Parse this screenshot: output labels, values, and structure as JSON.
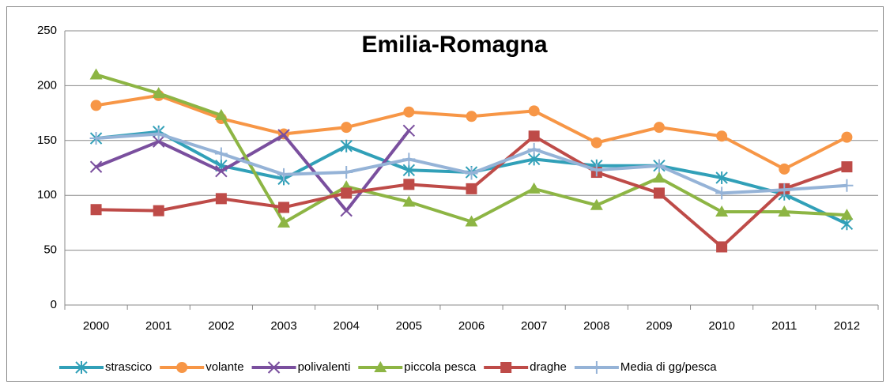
{
  "chart_data": {
    "type": "line",
    "title": "Emilia-Romagna",
    "categories": [
      "2000",
      "2001",
      "2002",
      "2003",
      "2004",
      "2005",
      "2006",
      "2007",
      "2008",
      "2009",
      "2010",
      "2011",
      "2012"
    ],
    "series": [
      {
        "name": "strascico",
        "color": "#31a0b8",
        "marker": "asterisk",
        "values": [
          152,
          158,
          127,
          115,
          145,
          123,
          121,
          133,
          127,
          127,
          116,
          101,
          74
        ]
      },
      {
        "name": "volante",
        "color": "#f79646",
        "marker": "circle",
        "values": [
          182,
          191,
          170,
          156,
          162,
          176,
          172,
          177,
          148,
          162,
          154,
          124,
          153
        ]
      },
      {
        "name": "polivalenti",
        "color": "#7a4f9e",
        "marker": "x",
        "values": [
          126,
          149,
          122,
          155,
          86,
          159,
          null,
          null,
          null,
          null,
          null,
          null,
          null
        ]
      },
      {
        "name": "piccola pesca",
        "color": "#8db544",
        "marker": "triangle",
        "values": [
          210,
          193,
          173,
          75,
          108,
          94,
          76,
          106,
          91,
          116,
          85,
          85,
          82
        ]
      },
      {
        "name": "draghe",
        "color": "#be4b48",
        "marker": "square",
        "values": [
          87,
          86,
          97,
          89,
          102,
          110,
          106,
          154,
          121,
          102,
          53,
          106,
          126
        ]
      },
      {
        "name": "Media di gg/pesca",
        "color": "#95b3d7",
        "marker": "plus",
        "values": [
          152,
          156,
          138,
          119,
          121,
          133,
          120,
          142,
          123,
          127,
          102,
          105,
          109
        ]
      }
    ],
    "ylim": [
      0,
      250
    ],
    "yticks": [
      0,
      50,
      100,
      150,
      200,
      250
    ],
    "grid": true,
    "legend": "bottom"
  }
}
